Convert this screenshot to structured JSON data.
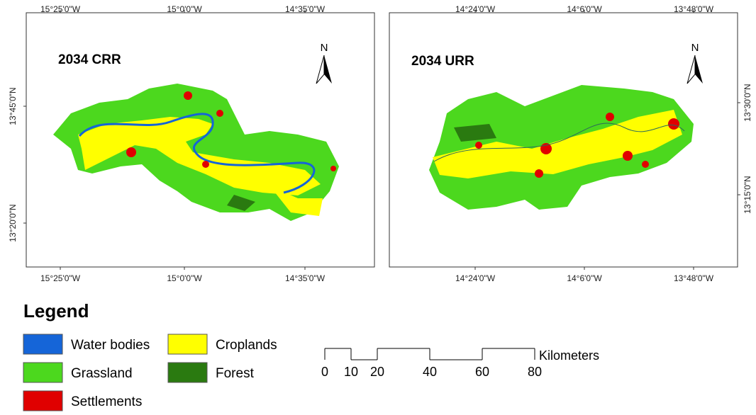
{
  "maps": [
    {
      "title": "2034 CRR",
      "north": "N",
      "top_labels": [
        "15°25'0\"W",
        "15°0'0\"W",
        "14°35'0\"W"
      ],
      "bottom_labels": [
        "15°25'0\"W",
        "15°0'0\"W",
        "14°35'0\"W"
      ],
      "side_labels": [
        "13°45'0\"N",
        "13°20'0\"N"
      ]
    },
    {
      "title": "2034 URR",
      "north": "N",
      "top_labels": [
        "14°24'0\"W",
        "14°6'0\"W",
        "13°48'0\"W"
      ],
      "bottom_labels": [
        "14°24'0\"W",
        "14°6'0\"W",
        "13°48'0\"W"
      ],
      "side_labels": [
        "13°30'0\"N",
        "13°15'0\"N"
      ]
    }
  ],
  "legend": {
    "title": "Legend",
    "items": [
      {
        "label": "Water bodies",
        "color": "#1565d8"
      },
      {
        "label": "Croplands",
        "color": "#ffff00"
      },
      {
        "label": "Grassland",
        "color": "#4cd81e"
      },
      {
        "label": "Forest",
        "color": "#2a7a10"
      },
      {
        "label": "Settlements",
        "color": "#e00000"
      }
    ]
  },
  "scale_bar": {
    "ticks": [
      0,
      10,
      20,
      40,
      60,
      80
    ],
    "unit": "Kilometers"
  }
}
